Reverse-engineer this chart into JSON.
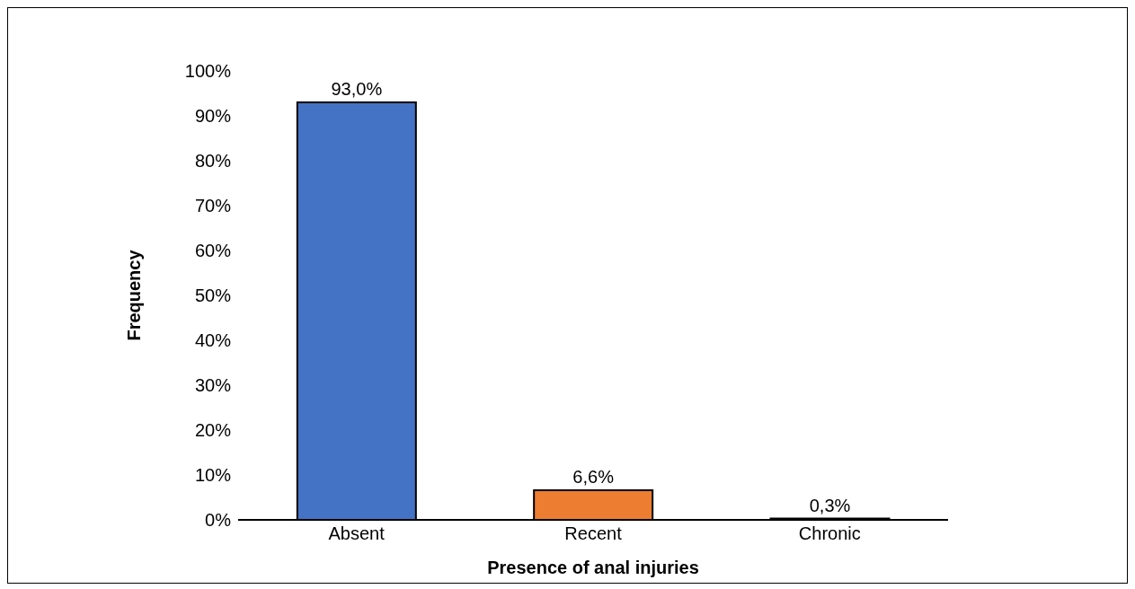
{
  "chart_data": {
    "type": "bar",
    "xlabel": "Presence of anal injuries",
    "ylabel": "Frequency",
    "categories": [
      "Absent",
      "Recent",
      "Chronic"
    ],
    "values": [
      93.0,
      6.6,
      0.3
    ],
    "colors": [
      "#4472c4",
      "#ed7d31",
      "#a5a5a5"
    ],
    "value_labels": [
      "93,0%",
      "6,6%",
      "0,3%"
    ],
    "ylim": [
      0,
      100
    ],
    "yticks": [
      {
        "value": 0,
        "label": "0%"
      },
      {
        "value": 10,
        "label": "10%"
      },
      {
        "value": 20,
        "label": "20%"
      },
      {
        "value": 30,
        "label": "30%"
      },
      {
        "value": 40,
        "label": "40%"
      },
      {
        "value": 50,
        "label": "50%"
      },
      {
        "value": 60,
        "label": "60%"
      },
      {
        "value": 70,
        "label": "70%"
      },
      {
        "value": 80,
        "label": "80%"
      },
      {
        "value": 90,
        "label": "90%"
      },
      {
        "value": 100,
        "label": "100%"
      }
    ],
    "grid": false,
    "legend": false
  }
}
